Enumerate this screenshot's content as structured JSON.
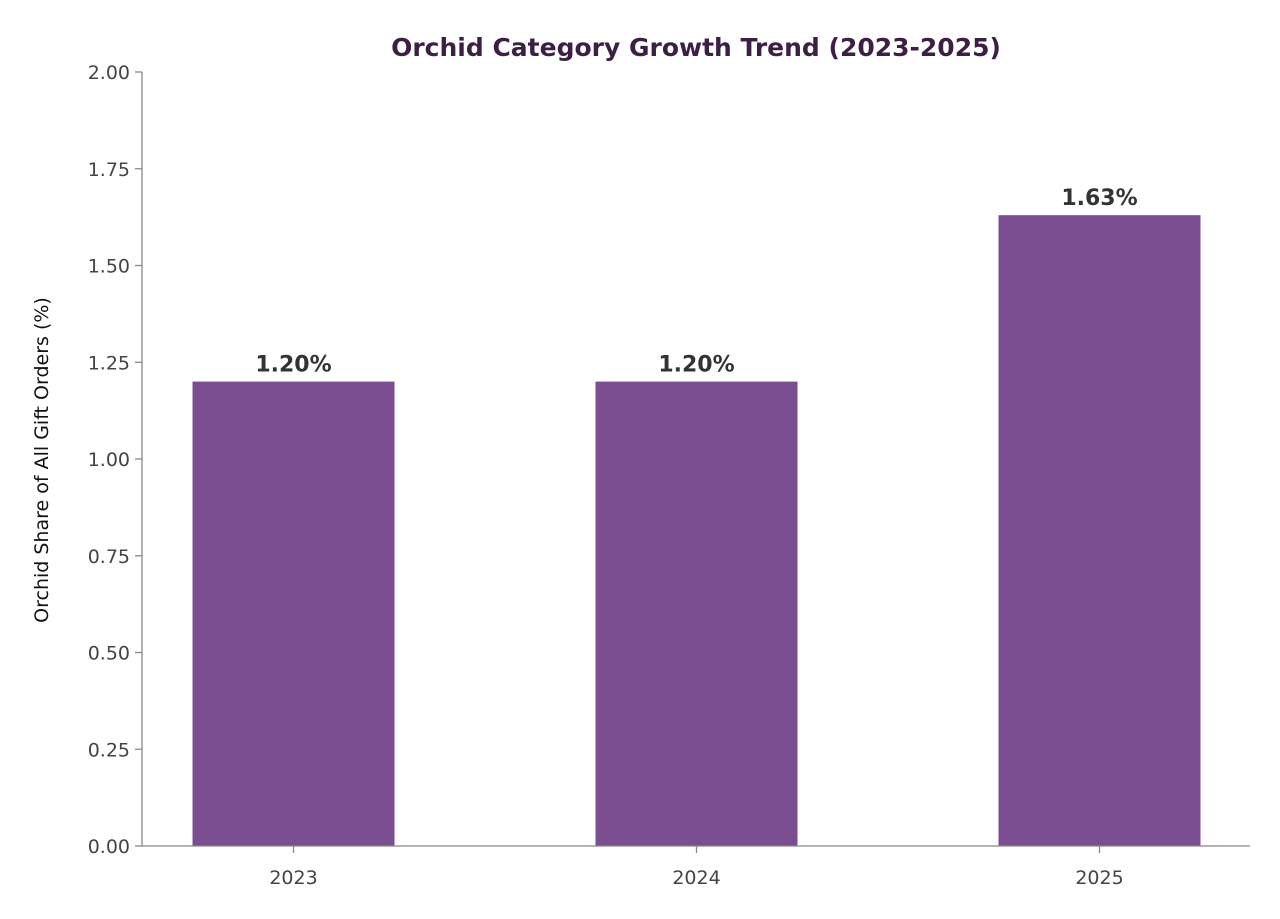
{
  "chart_data": {
    "type": "bar",
    "title": "Orchid Category Growth Trend (2023-2025)",
    "xlabel": "",
    "ylabel": "Orchid Share of All Gift Orders (%)",
    "categories": [
      "2023",
      "2024",
      "2025"
    ],
    "values": [
      1.2,
      1.2,
      1.63
    ],
    "data_labels": [
      "1.20%",
      "1.20%",
      "1.63%"
    ],
    "ylim": [
      0,
      2.0
    ],
    "yticks": [
      "0.00",
      "0.25",
      "0.50",
      "0.75",
      "1.00",
      "1.25",
      "1.50",
      "1.75",
      "2.00"
    ],
    "grid": false,
    "legend": "none",
    "colors": {
      "bar": "#7b4d91",
      "title": "#3d1f45",
      "data_label": "#333333",
      "axis": "#888888",
      "tick_label": "#444444",
      "axis_label": "#111111"
    }
  }
}
